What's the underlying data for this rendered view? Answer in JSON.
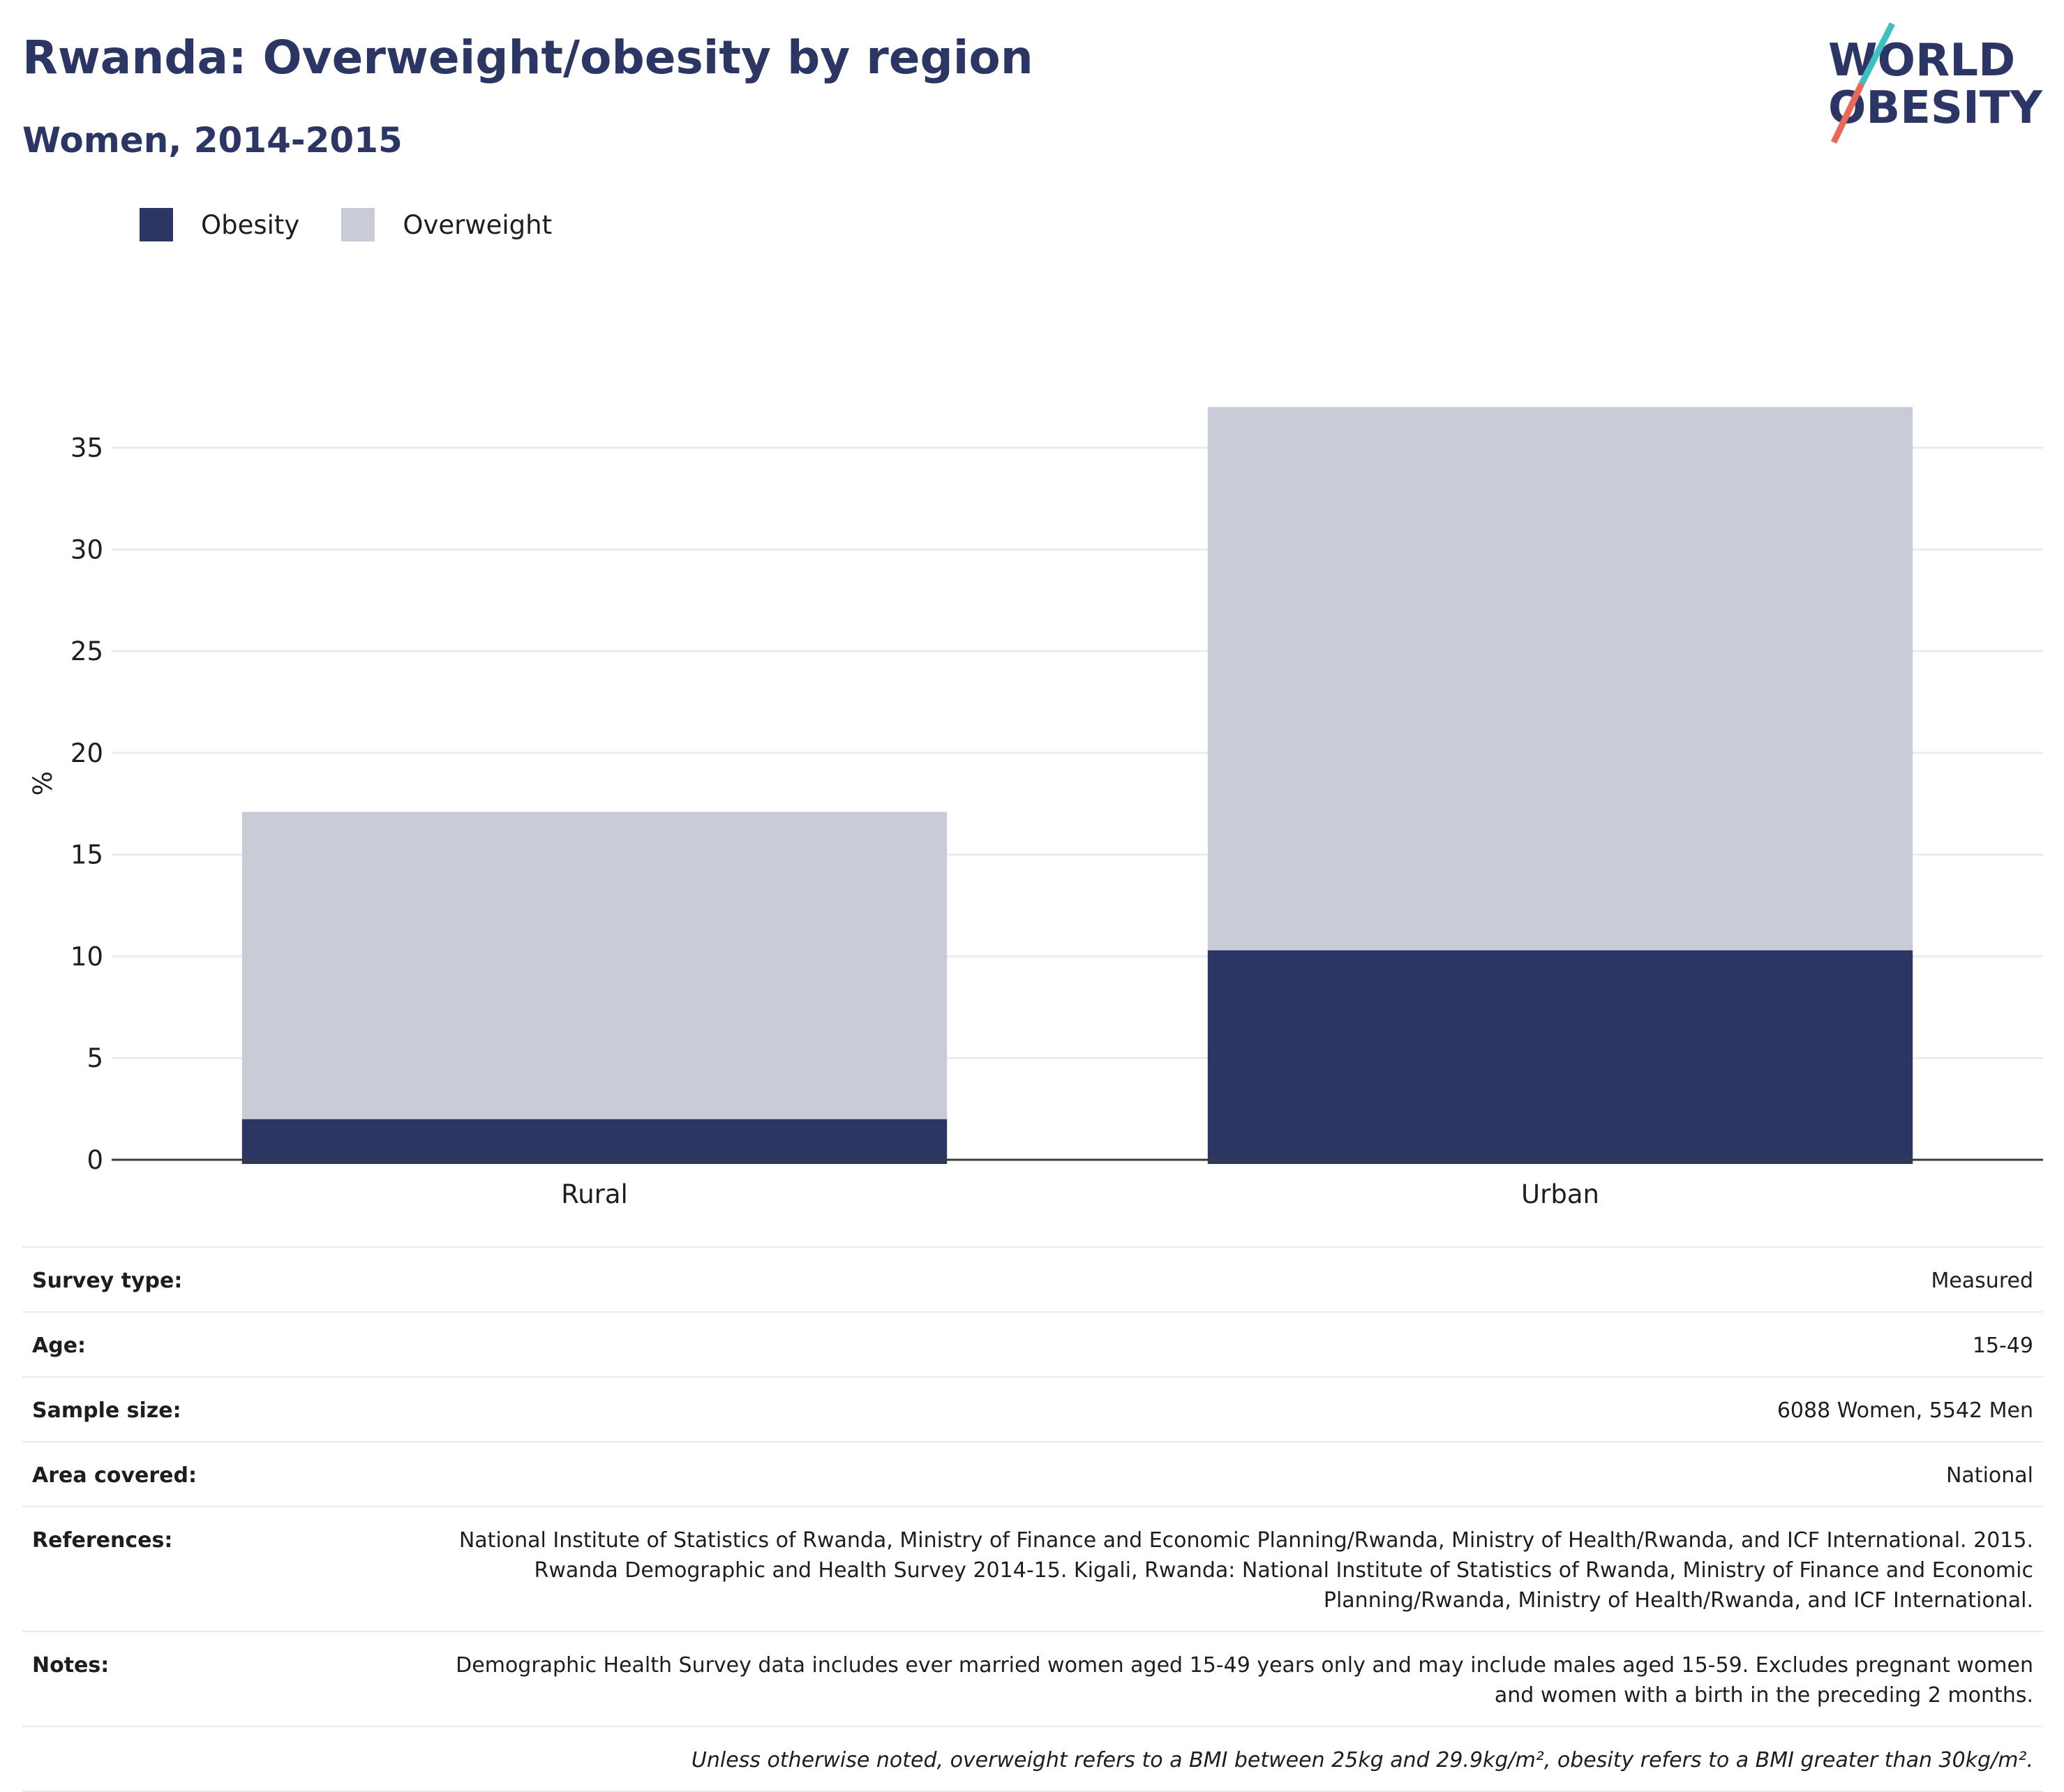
{
  "header": {
    "title": "Rwanda: Overweight/obesity by region",
    "subtitle": "Women, 2014-2015"
  },
  "logo": {
    "line1": "WORLD",
    "line2": "OBESITY",
    "colors": {
      "text": "#2b3664",
      "slash_top": "#3fbfc2",
      "slash_bottom": "#e8695a"
    }
  },
  "legend": {
    "items": [
      {
        "label": "Obesity",
        "color": "#2b3664"
      },
      {
        "label": "Overweight",
        "color": "#c9cbd6"
      }
    ]
  },
  "chart_data": {
    "type": "bar",
    "stacked": true,
    "categories": [
      "Rural",
      "Urban"
    ],
    "series": [
      {
        "name": "Obesity",
        "color": "#2b3664",
        "values": [
          2.0,
          10.3
        ]
      },
      {
        "name": "Overweight",
        "color": "#c9cbd6",
        "values": [
          15.1,
          26.7
        ]
      }
    ],
    "totals": [
      17.1,
      37.0
    ],
    "title": "Rwanda: Overweight/obesity by region",
    "subtitle": "Women, 2014-2015",
    "xlabel": "",
    "ylabel": "%",
    "ylim": [
      0,
      37
    ],
    "yticks": [
      0,
      5,
      10,
      15,
      20,
      25,
      30,
      35
    ],
    "grid": true,
    "legend_position": "top-left"
  },
  "info": {
    "rows": [
      {
        "key": "Survey type:",
        "value": "Measured"
      },
      {
        "key": "Age:",
        "value": "15-49"
      },
      {
        "key": "Sample size:",
        "value": "6088 Women, 5542 Men"
      },
      {
        "key": "Area covered:",
        "value": "National"
      },
      {
        "key": "References:",
        "value": "National Institute of Statistics of Rwanda, Ministry of Finance and Economic Planning/Rwanda, Ministry of Health/Rwanda, and ICF International. 2015. Rwanda Demographic and Health Survey 2014-15. Kigali, Rwanda: National Institute of Statistics of Rwanda, Ministry of Finance and Economic Planning/Rwanda, Ministry of Health/Rwanda, and ICF International."
      },
      {
        "key": "Notes:",
        "value": "Demographic Health Survey data includes ever married women aged 15-49 years only and may include males aged 15-59. Excludes pregnant women and women with a birth in the preceding 2 months."
      }
    ],
    "footnote": "Unless otherwise noted, overweight refers to a BMI between 25kg and 29.9kg/m², obesity refers to a BMI greater than 30kg/m²."
  }
}
